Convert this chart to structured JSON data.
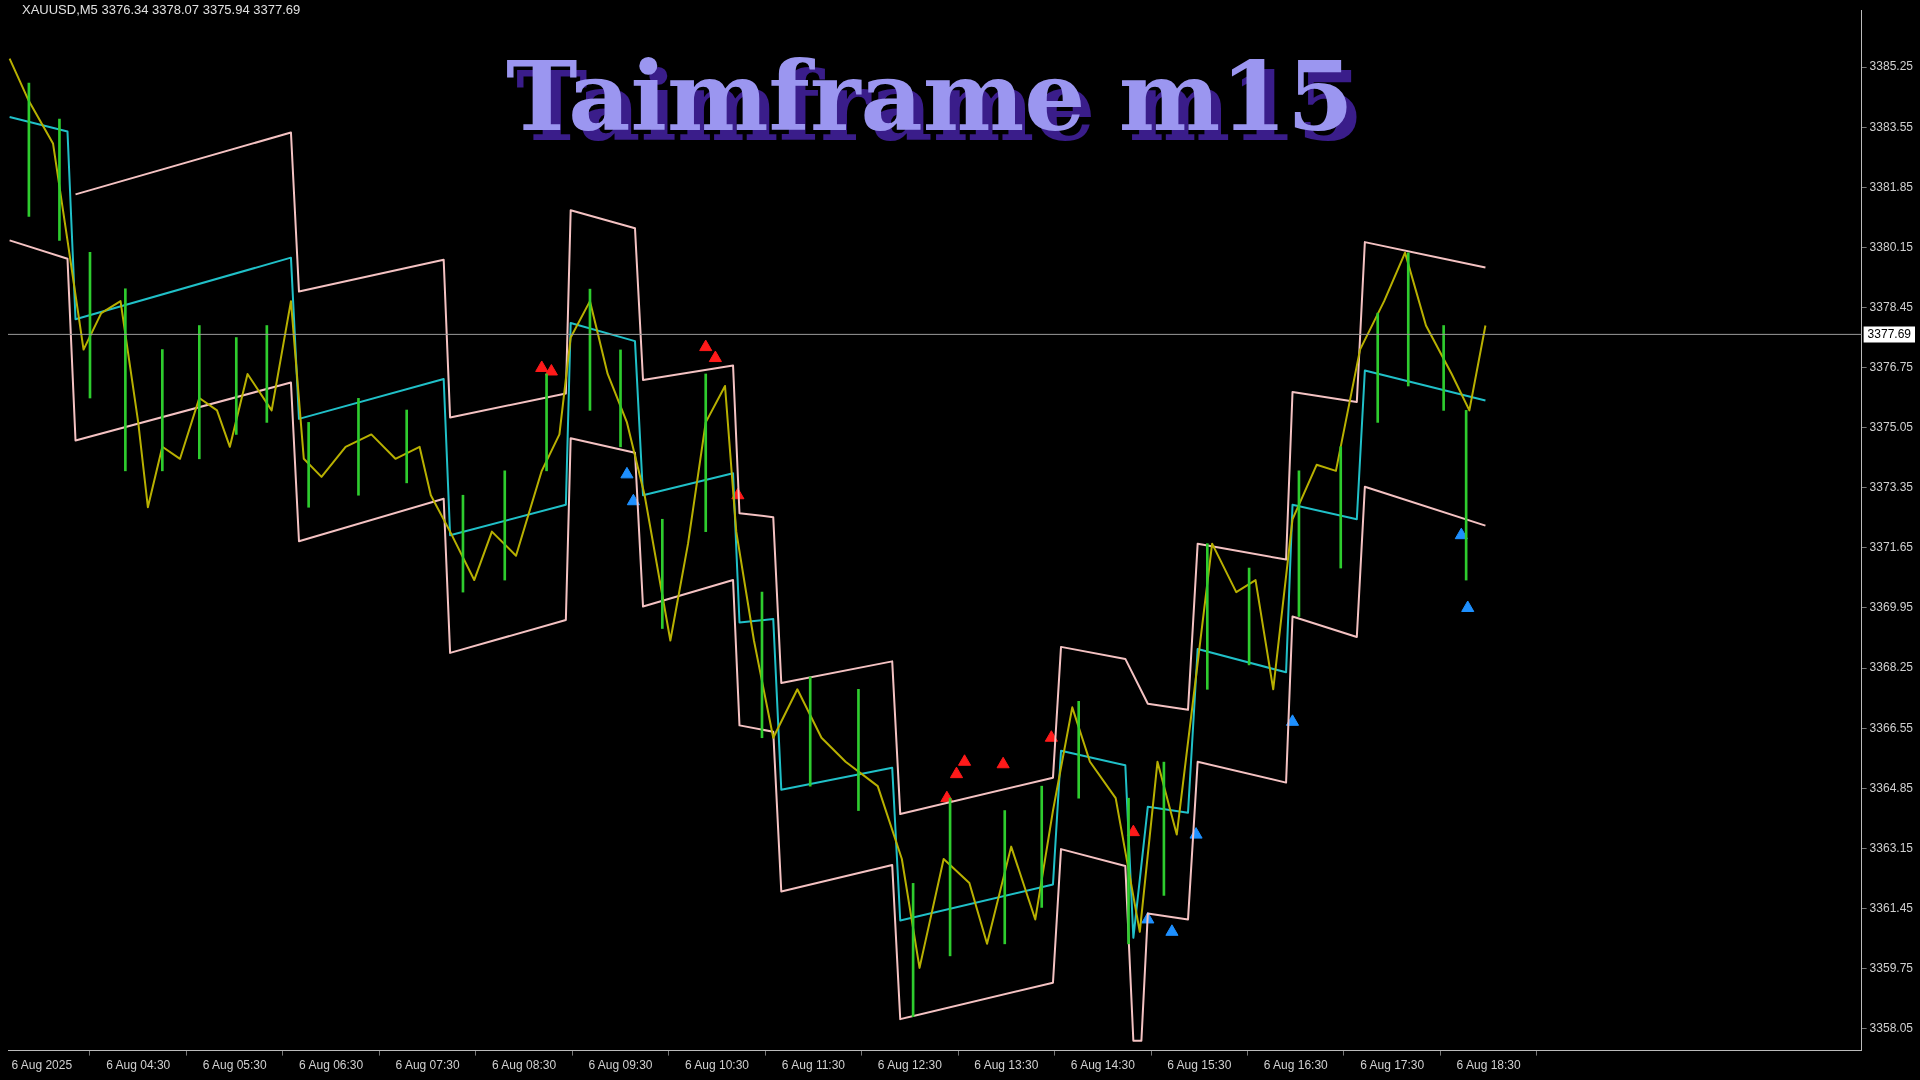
{
  "chart_data": {
    "type": "line",
    "title": "Taimframe m15",
    "annotations": [
      "XAUUSD,M5 3376.34 3378.07 3375.94 3377.69"
    ],
    "xlim": [
      "2025-08-06T03:09",
      "2025-08-06T22:22"
    ],
    "xticks": [
      {
        "value": "2025-08-06T03:30",
        "label": "6 Aug 2025"
      },
      {
        "value": "2025-08-06T04:30",
        "label": "6 Aug 04:30"
      },
      {
        "value": "2025-08-06T05:30",
        "label": "6 Aug 05:30"
      },
      {
        "value": "2025-08-06T06:30",
        "label": "6 Aug 06:30"
      },
      {
        "value": "2025-08-06T07:30",
        "label": "6 Aug 07:30"
      },
      {
        "value": "2025-08-06T08:30",
        "label": "6 Aug 08:30"
      },
      {
        "value": "2025-08-06T09:30",
        "label": "6 Aug 09:30"
      },
      {
        "value": "2025-08-06T10:30",
        "label": "6 Aug 10:30"
      },
      {
        "value": "2025-08-06T11:30",
        "label": "6 Aug 11:30"
      },
      {
        "value": "2025-08-06T12:30",
        "label": "6 Aug 12:30"
      },
      {
        "value": "2025-08-06T13:30",
        "label": "6 Aug 13:30"
      },
      {
        "value": "2025-08-06T14:30",
        "label": "6 Aug 14:30"
      },
      {
        "value": "2025-08-06T15:30",
        "label": "6 Aug 15:30"
      },
      {
        "value": "2025-08-06T16:30",
        "label": "6 Aug 16:30"
      },
      {
        "value": "2025-08-06T17:30",
        "label": "6 Aug 17:30"
      },
      {
        "value": "2025-08-06T18:30",
        "label": "6 Aug 18:30"
      }
    ],
    "ylim": [
      3357.43,
      3386.86
    ],
    "yticks": [
      3358.05,
      3359.75,
      3361.45,
      3363.15,
      3364.85,
      3366.55,
      3368.25,
      3369.95,
      3371.65,
      3373.35,
      3375.05,
      3376.75,
      3378.45,
      3380.15,
      3381.85,
      3383.55,
      3385.25
    ],
    "grid": false,
    "legend": false,
    "ref_lines": [
      {
        "axis": "y",
        "value": 3377.69,
        "label": "3377.69",
        "color": "#9a9a9a"
      }
    ],
    "series": [
      {
        "type": "bar",
        "color": "#2ecc2e",
        "x": [
          "2025-08-06T03:22",
          "2025-08-06T03:41",
          "2025-08-06T04:00",
          "2025-08-06T04:22",
          "2025-08-06T04:45",
          "2025-08-06T05:08",
          "2025-08-06T05:31",
          "2025-08-06T05:50",
          "2025-08-06T06:16",
          "2025-08-06T06:47",
          "2025-08-06T07:17",
          "2025-08-06T07:52",
          "2025-08-06T08:18",
          "2025-08-06T08:44",
          "2025-08-06T09:11",
          "2025-08-06T09:30",
          "2025-08-06T09:56",
          "2025-08-06T10:23",
          "2025-08-06T10:58",
          "2025-08-06T11:28",
          "2025-08-06T11:58",
          "2025-08-06T12:32",
          "2025-08-06T12:55",
          "2025-08-06T13:29",
          "2025-08-06T13:52",
          "2025-08-06T14:15",
          "2025-08-06T14:46",
          "2025-08-06T15:08",
          "2025-08-06T15:35",
          "2025-08-06T16:01",
          "2025-08-06T16:32",
          "2025-08-06T16:58",
          "2025-08-06T17:21",
          "2025-08-06T17:40",
          "2025-08-06T18:02",
          "2025-08-06T18:16"
        ],
        "base": [
          3381.03,
          3380.35,
          3375.89,
          3373.83,
          3373.83,
          3374.17,
          3374.86,
          3375.2,
          3372.8,
          3373.14,
          3373.49,
          3370.4,
          3370.74,
          3373.83,
          3375.54,
          3374.51,
          3369.37,
          3372.11,
          3366.28,
          3364.91,
          3364.22,
          3358.39,
          3360.11,
          3360.45,
          3361.48,
          3364.57,
          3360.45,
          3361.82,
          3367.65,
          3368.34,
          3369.71,
          3371.08,
          3375.2,
          3376.23,
          3375.54,
          3370.74
        ],
        "values": [
          3.77,
          3.43,
          4.12,
          5.15,
          3.43,
          3.77,
          2.74,
          2.74,
          2.4,
          2.74,
          2.06,
          2.74,
          3.09,
          2.74,
          3.43,
          2.74,
          3.09,
          4.46,
          4.12,
          3.09,
          3.43,
          3.77,
          4.46,
          3.77,
          3.43,
          2.74,
          4.12,
          3.77,
          4.12,
          2.74,
          4.12,
          3.43,
          3.09,
          3.77,
          2.4,
          4.8
        ]
      },
      {
        "marker": "none",
        "color": "#b8b000",
        "x": [
          "2025-08-06T03:10",
          "2025-08-06T03:22",
          "2025-08-06T03:37",
          "2025-08-06T03:46",
          "2025-08-06T03:56",
          "2025-08-06T04:07",
          "2025-08-06T04:19",
          "2025-08-06T04:30",
          "2025-08-06T04:36",
          "2025-08-06T04:45",
          "2025-08-06T04:56",
          "2025-08-06T05:08",
          "2025-08-06T05:19",
          "2025-08-06T05:27",
          "2025-08-06T05:38",
          "2025-08-06T05:53",
          "2025-08-06T06:05",
          "2025-08-06T06:13",
          "2025-08-06T06:24",
          "2025-08-06T06:39",
          "2025-08-06T06:55",
          "2025-08-06T07:10",
          "2025-08-06T07:25",
          "2025-08-06T07:32",
          "2025-08-06T07:44",
          "2025-08-06T07:59",
          "2025-08-06T08:10",
          "2025-08-06T08:25",
          "2025-08-06T08:41",
          "2025-08-06T08:52",
          "2025-08-06T08:59",
          "2025-08-06T09:11",
          "2025-08-06T09:22",
          "2025-08-06T09:34",
          "2025-08-06T09:45",
          "2025-08-06T10:01",
          "2025-08-06T10:12",
          "2025-08-06T10:23",
          "2025-08-06T10:35",
          "2025-08-06T10:42",
          "2025-08-06T10:53",
          "2025-08-06T11:05",
          "2025-08-06T11:20",
          "2025-08-06T11:35",
          "2025-08-06T11:50",
          "2025-08-06T12:10",
          "2025-08-06T12:25",
          "2025-08-06T12:36",
          "2025-08-06T12:51",
          "2025-08-06T13:07",
          "2025-08-06T13:18",
          "2025-08-06T13:33",
          "2025-08-06T13:48",
          "2025-08-06T13:59",
          "2025-08-06T14:11",
          "2025-08-06T14:22",
          "2025-08-06T14:38",
          "2025-08-06T14:53",
          "2025-08-06T15:04",
          "2025-08-06T15:16",
          "2025-08-06T15:27",
          "2025-08-06T15:38",
          "2025-08-06T15:53",
          "2025-08-06T16:05",
          "2025-08-06T16:16",
          "2025-08-06T16:28",
          "2025-08-06T16:43",
          "2025-08-06T16:55",
          "2025-08-06T17:10",
          "2025-08-06T17:25",
          "2025-08-06T17:38",
          "2025-08-06T17:51",
          "2025-08-06T18:07",
          "2025-08-06T18:18",
          "2025-08-06T18:28"
        ],
        "values": [
          3385.49,
          3384.29,
          3383.09,
          3380.35,
          3377.26,
          3378.29,
          3378.63,
          3375.2,
          3372.8,
          3374.51,
          3374.17,
          3375.89,
          3375.54,
          3374.51,
          3376.57,
          3375.54,
          3378.63,
          3374.17,
          3373.66,
          3374.51,
          3374.86,
          3374.17,
          3374.51,
          3373.14,
          3372.11,
          3370.74,
          3372.11,
          3371.43,
          3373.83,
          3374.86,
          3377.6,
          3378.63,
          3376.57,
          3375.2,
          3373.14,
          3369.03,
          3371.77,
          3375.2,
          3376.23,
          3372.11,
          3369.03,
          3366.28,
          3367.65,
          3366.28,
          3365.6,
          3364.91,
          3362.85,
          3359.77,
          3362.85,
          3362.17,
          3360.45,
          3363.2,
          3361.14,
          3364.22,
          3367.14,
          3365.6,
          3364.57,
          3360.79,
          3365.6,
          3363.54,
          3367.65,
          3371.77,
          3370.4,
          3370.74,
          3367.65,
          3372.46,
          3374.0,
          3373.83,
          3377.26,
          3378.63,
          3380.0,
          3377.94,
          3376.57,
          3375.54,
          3377.94
        ]
      },
      {
        "type": "line",
        "marker": "none",
        "color": "#f4c2c2",
        "x": [
          "2025-08-06T03:51",
          "2025-08-06T06:05",
          "2025-08-06T06:10",
          "2025-08-06T07:40",
          "2025-08-06T07:44",
          "2025-08-06T08:56",
          "2025-08-06T08:59",
          "2025-08-06T09:39",
          "2025-08-06T09:44",
          "2025-08-06T10:40",
          "2025-08-06T10:44",
          "2025-08-06T11:05",
          "2025-08-06T11:10",
          "2025-08-06T12:19",
          "2025-08-06T12:24",
          "2025-08-06T13:59",
          "2025-08-06T14:04",
          "2025-08-06T14:44",
          "2025-08-06T14:58",
          "2025-08-06T15:23",
          "2025-08-06T15:29",
          "2025-08-06T16:24",
          "2025-08-06T16:28",
          "2025-08-06T17:08",
          "2025-08-06T17:13",
          "2025-08-06T18:28"
        ],
        "values": [
          3381.65,
          3383.4,
          3378.9,
          3379.8,
          3375.34,
          3376.02,
          3381.2,
          3380.69,
          3376.4,
          3376.81,
          3372.63,
          3372.52,
          3367.83,
          3368.44,
          3364.12,
          3365.15,
          3368.85,
          3368.51,
          3367.24,
          3367.07,
          3371.77,
          3371.32,
          3376.06,
          3375.78,
          3380.3,
          3379.58
        ]
      },
      {
        "type": "line",
        "marker": "none",
        "color": "#20c0c8",
        "x": [
          "2025-08-06T03:10",
          "2025-08-06T03:46",
          "2025-08-06T03:51",
          "2025-08-06T06:05",
          "2025-08-06T06:10",
          "2025-08-06T07:40",
          "2025-08-06T07:44",
          "2025-08-06T08:56",
          "2025-08-06T08:59",
          "2025-08-06T09:39",
          "2025-08-06T09:44",
          "2025-08-06T10:40",
          "2025-08-06T10:44",
          "2025-08-06T11:05",
          "2025-08-06T11:10",
          "2025-08-06T12:19",
          "2025-08-06T12:24",
          "2025-08-06T13:59",
          "2025-08-06T14:04",
          "2025-08-06T14:44",
          "2025-08-06T14:49",
          "2025-08-06T14:58",
          "2025-08-06T15:23",
          "2025-08-06T15:29",
          "2025-08-06T16:24",
          "2025-08-06T16:28",
          "2025-08-06T17:08",
          "2025-08-06T17:13",
          "2025-08-06T18:28"
        ],
        "values": [
          3383.84,
          3383.43,
          3378.12,
          3379.86,
          3375.3,
          3376.43,
          3372.01,
          3372.87,
          3378.01,
          3377.5,
          3373.14,
          3373.76,
          3369.54,
          3369.64,
          3364.81,
          3365.43,
          3361.11,
          3362.13,
          3365.91,
          3365.5,
          3360.62,
          3364.33,
          3364.16,
          3368.79,
          3368.13,
          3372.87,
          3372.46,
          3376.67,
          3375.82
        ]
      },
      {
        "type": "line",
        "marker": "none",
        "color": "#f4c2c2",
        "x": [
          "2025-08-06T03:10",
          "2025-08-06T03:46",
          "2025-08-06T03:51",
          "2025-08-06T06:05",
          "2025-08-06T06:10",
          "2025-08-06T07:40",
          "2025-08-06T07:44",
          "2025-08-06T08:56",
          "2025-08-06T08:59",
          "2025-08-06T09:39",
          "2025-08-06T09:44",
          "2025-08-06T10:40",
          "2025-08-06T10:44",
          "2025-08-06T11:05",
          "2025-08-06T11:10",
          "2025-08-06T12:19",
          "2025-08-06T12:24",
          "2025-08-06T13:59",
          "2025-08-06T14:04",
          "2025-08-06T14:44",
          "2025-08-06T14:49",
          "2025-08-06T14:54",
          "2025-08-06T14:58",
          "2025-08-06T15:23",
          "2025-08-06T15:29",
          "2025-08-06T16:24",
          "2025-08-06T16:28",
          "2025-08-06T17:08",
          "2025-08-06T17:13",
          "2025-08-06T18:28"
        ],
        "values": [
          3380.35,
          3379.83,
          3374.69,
          3376.33,
          3371.84,
          3373.04,
          3368.68,
          3369.61,
          3374.75,
          3374.34,
          3369.99,
          3370.74,
          3366.63,
          3366.45,
          3361.93,
          3362.68,
          3358.32,
          3359.35,
          3363.13,
          3362.65,
          3357.71,
          3357.71,
          3361.31,
          3361.14,
          3365.6,
          3365.01,
          3369.71,
          3369.13,
          3373.38,
          3372.28
        ]
      },
      {
        "type": "scatter",
        "marker": "triangle",
        "color": "#ff1a1a",
        "x": [
          "2025-08-06T08:41",
          "2025-08-06T08:47",
          "2025-08-06T10:23",
          "2025-08-06T10:29",
          "2025-08-06T10:43",
          "2025-08-06T12:53",
          "2025-08-06T12:59",
          "2025-08-06T13:04",
          "2025-08-06T13:28",
          "2025-08-06T13:58",
          "2025-08-06T14:49"
        ],
        "values": [
          3376.74,
          3376.64,
          3377.33,
          3377.02,
          3373.14,
          3364.57,
          3365.25,
          3365.6,
          3365.53,
          3366.28,
          3363.61
        ]
      },
      {
        "type": "scatter",
        "marker": "triangle",
        "color": "#1e90ff",
        "x": [
          "2025-08-06T09:34",
          "2025-08-06T09:38",
          "2025-08-06T14:58",
          "2025-08-06T15:13",
          "2025-08-06T15:28",
          "2025-08-06T16:28",
          "2025-08-06T18:13",
          "2025-08-06T18:17"
        ],
        "values": [
          3373.73,
          3372.97,
          3361.14,
          3360.79,
          3363.54,
          3366.73,
          3372.01,
          3369.95
        ]
      }
    ]
  }
}
